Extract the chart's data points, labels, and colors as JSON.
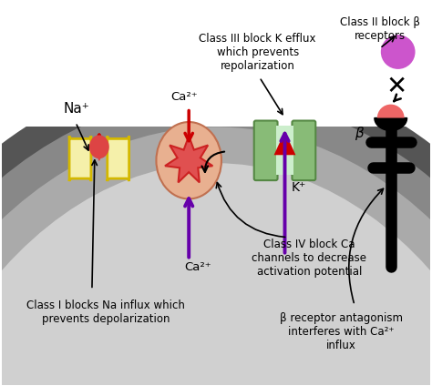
{
  "labels": {
    "na_plus": "Na⁺",
    "ca2plus_top": "Ca²⁺",
    "ca2plus_bottom": "Ca²⁺",
    "k_plus": "K⁺",
    "beta": "β",
    "class1": "Class I blocks Na influx which\nprevents depolarization",
    "class2": "Class II block β\nreceptors",
    "class3": "Class III block K efflux\nwhich prevents\nrepolarization",
    "class4": "Class IV block Ca\nchannels to decrease\nactivation potential",
    "beta_rec": "β receptor antagonism\ninterferes with Ca²⁺\ninflux"
  },
  "colors": {
    "red_arrow": "#cc0000",
    "purple_arrow": "#6600aa",
    "na_channel_light": "#f5f0aa",
    "na_channel_dark": "#d4b800",
    "ca_oval_fill": "#e8b090",
    "ca_oval_edge": "#c07050",
    "star_fill": "#e05050",
    "star_edge": "#cc2222",
    "k_channel_fill": "#88bb77",
    "k_channel_dark": "#558844",
    "k_light_center": "#cceecc",
    "beta_receptor_fill": "#ee6666",
    "magenta_circle": "#cc55cc",
    "red_drop": "#dd4444",
    "membrane_dark": "#555555",
    "membrane_mid": "#888888",
    "cell_interior": "#d0d0d0"
  }
}
